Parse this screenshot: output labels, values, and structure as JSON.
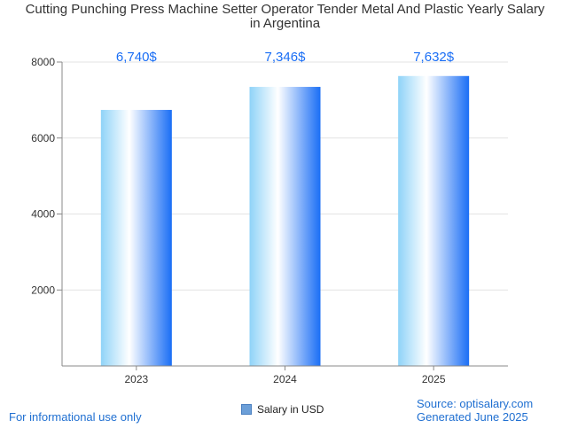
{
  "header": {
    "title_line1": "Cutting Punching Press Machine Setter Operator Tender Metal And Plastic Yearly Salary",
    "title_line2": "in Argentina"
  },
  "footer": {
    "left_note": "For informational use only",
    "source": "Source: optisalary.com",
    "generated": "Generated June 2025"
  },
  "legend": {
    "label": "Salary in USD"
  },
  "colors": {
    "bar_dark": "#1a6ef5",
    "bar_light": "#8fd3f8",
    "label": "#1a6ef5"
  },
  "chart_data": {
    "type": "bar",
    "title": "Cutting Punching Press Machine Setter Operator Tender Metal And Plastic Yearly Salary in Argentina",
    "categories": [
      "2023",
      "2024",
      "2025"
    ],
    "series": [
      {
        "name": "Salary in USD",
        "values": [
          6740,
          7346,
          7632
        ]
      }
    ],
    "data_labels": [
      "6,740$",
      "7,346$",
      "7,632$"
    ],
    "ylim": [
      0,
      8000
    ],
    "yticks": [
      2000,
      4000,
      6000,
      8000
    ],
    "grid": true,
    "legend_position": "bottom"
  }
}
